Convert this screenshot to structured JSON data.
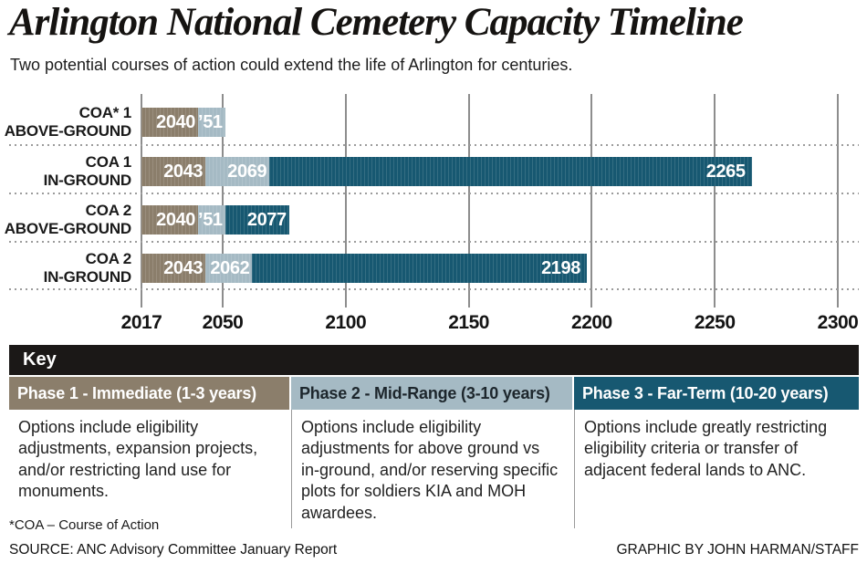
{
  "title": "Arlington National Cemetery Capacity Timeline",
  "subtitle": "Two potential courses of action could extend the life of Arlington for centuries.",
  "colors": {
    "phase1": "#8b7e6b",
    "phase2": "#a5bac4",
    "phase3": "#175871",
    "key_band_bg": "#1b1817",
    "gridline": "#8d8d8d"
  },
  "chart_data": {
    "type": "bar",
    "orientation": "horizontal",
    "axis": {
      "min": 2017,
      "max": 2300,
      "ticks": [
        2017,
        2050,
        2100,
        2150,
        2200,
        2250,
        2300
      ]
    },
    "rows": [
      {
        "label_line1": "COA* 1",
        "label_line2": "ABOVE-GROUND",
        "segments": [
          {
            "phase": "phase1",
            "start": 2017,
            "end": 2040,
            "label": "2040"
          },
          {
            "phase": "phase2",
            "start": 2040,
            "end": 2051,
            "label": "’51"
          }
        ]
      },
      {
        "label_line1": "COA 1",
        "label_line2": "IN-GROUND",
        "segments": [
          {
            "phase": "phase1",
            "start": 2017,
            "end": 2043,
            "label": "2043"
          },
          {
            "phase": "phase2",
            "start": 2043,
            "end": 2069,
            "label": "2069"
          },
          {
            "phase": "phase3",
            "start": 2069,
            "end": 2265,
            "label": "2265"
          }
        ]
      },
      {
        "label_line1": "COA 2",
        "label_line2": "ABOVE-GROUND",
        "segments": [
          {
            "phase": "phase1",
            "start": 2017,
            "end": 2040,
            "label": "2040"
          },
          {
            "phase": "phase2",
            "start": 2040,
            "end": 2051,
            "label": "’51"
          },
          {
            "phase": "phase3",
            "start": 2051,
            "end": 2077,
            "label": "2077"
          }
        ]
      },
      {
        "label_line1": "COA 2",
        "label_line2": "IN-GROUND",
        "segments": [
          {
            "phase": "phase1",
            "start": 2017,
            "end": 2043,
            "label": "2043"
          },
          {
            "phase": "phase2",
            "start": 2043,
            "end": 2062,
            "label": "2062"
          },
          {
            "phase": "phase3",
            "start": 2062,
            "end": 2198,
            "label": "2198"
          }
        ]
      }
    ]
  },
  "key": {
    "title": "Key",
    "columns": [
      {
        "header": "Phase 1 - Immediate (1-3 years)",
        "body": "Options include eligibility adjustments, expansion projects, and/or restricting land use for monuments.",
        "phase": "phase1",
        "header_text_color": "#ffffff"
      },
      {
        "header": "Phase 2 - Mid-Range (3-10 years)",
        "body": "Options include eligibility adjustments for above ground vs in-ground, and/or reserving specific plots for soldiers KIA and MOH awardees.",
        "phase": "phase2",
        "header_text_color": "#1d262c"
      },
      {
        "header": "Phase 3 - Far-Term (10-20 years)",
        "body": "Options include greatly restricting eligibility criteria or transfer of adjacent federal lands to ANC.",
        "phase": "phase3",
        "header_text_color": "#ffffff"
      }
    ]
  },
  "footnote": "*COA – Course of Action",
  "source": "SOURCE: ANC Advisory Committee January Report",
  "credit": "GRAPHIC BY JOHN HARMAN/STAFF"
}
